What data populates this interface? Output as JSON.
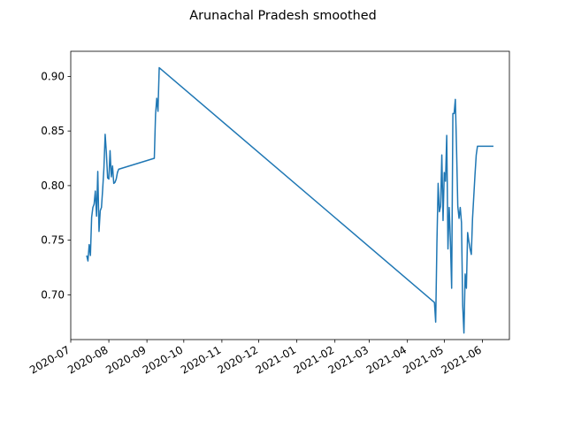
{
  "chart_data": {
    "type": "line",
    "title": "Arunachal Pradesh smoothed",
    "xlabel": "",
    "ylabel": "",
    "x_axis": "date",
    "xlim": [
      "2020-07-01",
      "2021-06-23"
    ],
    "ylim": [
      0.659,
      0.923
    ],
    "x_ticks": [
      "2020-07",
      "2020-08",
      "2020-09",
      "2020-10",
      "2020-11",
      "2020-12",
      "2021-01",
      "2021-02",
      "2021-03",
      "2021-04",
      "2021-05",
      "2021-06"
    ],
    "x_tick_dates": [
      "2020-07-01",
      "2020-08-01",
      "2020-09-01",
      "2020-10-01",
      "2020-11-01",
      "2020-12-01",
      "2021-01-01",
      "2021-02-01",
      "2021-03-01",
      "2021-04-01",
      "2021-05-01",
      "2021-06-01"
    ],
    "y_ticks": [
      "0.70",
      "0.75",
      "0.80",
      "0.85",
      "0.90"
    ],
    "y_tick_values": [
      0.7,
      0.75,
      0.8,
      0.85,
      0.9
    ],
    "grid": false,
    "color": "#1f77b4",
    "series": [
      {
        "x": [
          "2020-07-14",
          "2020-07-15",
          "2020-07-16",
          "2020-07-17",
          "2020-07-18",
          "2020-07-19",
          "2020-07-20",
          "2020-07-21",
          "2020-07-22",
          "2020-07-23",
          "2020-07-24",
          "2020-07-25",
          "2020-07-26",
          "2020-07-27",
          "2020-07-28",
          "2020-07-29",
          "2020-07-30",
          "2020-07-31",
          "2020-08-01",
          "2020-08-02",
          "2020-08-03",
          "2020-08-04",
          "2020-08-05",
          "2020-08-06",
          "2020-08-07",
          "2020-08-08",
          "2020-08-09",
          "2020-09-07",
          "2020-09-08",
          "2020-09-09",
          "2020-09-10",
          "2020-09-11",
          "2021-04-23",
          "2021-04-24",
          "2021-04-25",
          "2021-04-26",
          "2021-04-27",
          "2021-04-28",
          "2021-04-29",
          "2021-04-30",
          "2021-05-01",
          "2021-05-02",
          "2021-05-03",
          "2021-05-04",
          "2021-05-05",
          "2021-05-06",
          "2021-05-07",
          "2021-05-08",
          "2021-05-09",
          "2021-05-10",
          "2021-05-11",
          "2021-05-12",
          "2021-05-13",
          "2021-05-14",
          "2021-05-15",
          "2021-05-16",
          "2021-05-17",
          "2021-05-18",
          "2021-05-19",
          "2021-05-20",
          "2021-05-21",
          "2021-05-22",
          "2021-05-23",
          "2021-05-24",
          "2021-05-25",
          "2021-05-26",
          "2021-05-27",
          "2021-05-28",
          "2021-05-29",
          "2021-05-30",
          "2021-06-01",
          "2021-06-10"
        ],
        "y": [
          0.736,
          0.731,
          0.746,
          0.736,
          0.771,
          0.78,
          0.783,
          0.795,
          0.772,
          0.813,
          0.758,
          0.777,
          0.78,
          0.797,
          0.816,
          0.847,
          0.83,
          0.807,
          0.806,
          0.832,
          0.808,
          0.818,
          0.802,
          0.803,
          0.806,
          0.812,
          0.815,
          0.825,
          0.865,
          0.88,
          0.868,
          0.908,
          0.693,
          0.675,
          0.747,
          0.802,
          0.776,
          0.781,
          0.828,
          0.768,
          0.812,
          0.804,
          0.846,
          0.742,
          0.78,
          0.749,
          0.706,
          0.866,
          0.866,
          0.879,
          0.833,
          0.781,
          0.77,
          0.78,
          0.766,
          0.69,
          0.665,
          0.719,
          0.706,
          0.757,
          0.749,
          0.742,
          0.737,
          0.77,
          0.79,
          0.81,
          0.828,
          0.836,
          0.836,
          0.836,
          0.836,
          0.836
        ]
      }
    ]
  }
}
